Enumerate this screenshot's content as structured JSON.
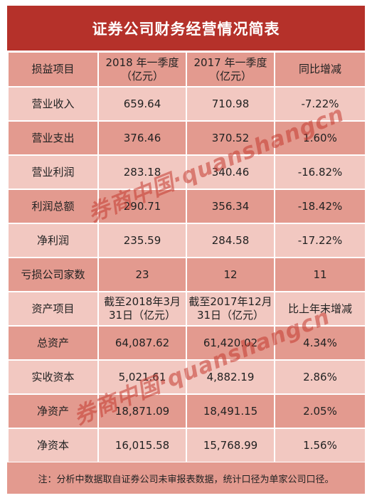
{
  "title": "证券公司财务经营情况简表",
  "income_header": {
    "c1": "损益项目",
    "c2_line1": "2018 年一季度",
    "c2_line2": "（亿元）",
    "c3_line1": "2017 年一季度",
    "c3_line2": "（亿元）",
    "c4": "同比增减"
  },
  "income_rows": [
    {
      "label": "营业收入",
      "v2018": "659.64",
      "v2017": "710.98",
      "change": "-7.22%"
    },
    {
      "label": "营业支出",
      "v2018": "376.46",
      "v2017": "370.52",
      "change": "1.60%"
    },
    {
      "label": "营业利润",
      "v2018": "283.18",
      "v2017": "340.46",
      "change": "-16.82%"
    },
    {
      "label": "利润总额",
      "v2018": "290.71",
      "v2017": "356.34",
      "change": "-18.42%"
    },
    {
      "label": "净利润",
      "v2018": "235.59",
      "v2017": "284.58",
      "change": "-17.22%"
    },
    {
      "label": "亏损公司家数",
      "v2018": "23",
      "v2017": "12",
      "change": "11"
    }
  ],
  "asset_header": {
    "c1": "资产项目",
    "c2_line1": "截至2018年3月",
    "c2_line2": "31日（亿元）",
    "c3_line1": "截至2017年12月",
    "c3_line2": "31日（亿元）",
    "c4": "比上年末增减"
  },
  "asset_rows": [
    {
      "label": "总资产",
      "v2018": "64,087.62",
      "v2017": "61,420.02",
      "change": "4.34%"
    },
    {
      "label": "实收资本",
      "v2018": "5,021.61",
      "v2017": "4,882.19",
      "change": "2.86%"
    },
    {
      "label": "净资产",
      "v2018": "18,871.09",
      "v2017": "18,491.15",
      "change": "2.05%"
    },
    {
      "label": "净资本",
      "v2018": "16,015.58",
      "v2017": "15,768.99",
      "change": "1.56%"
    }
  ],
  "footer": "注：分析中数据取自证券公司未审报表数据，统计口径为单家公司口径。",
  "watermark": "券商中国·quanshangcn",
  "colors": {
    "title_bg": "#b5312a",
    "row_light": "#f2c8c1",
    "row_dark": "#e39a8f"
  }
}
